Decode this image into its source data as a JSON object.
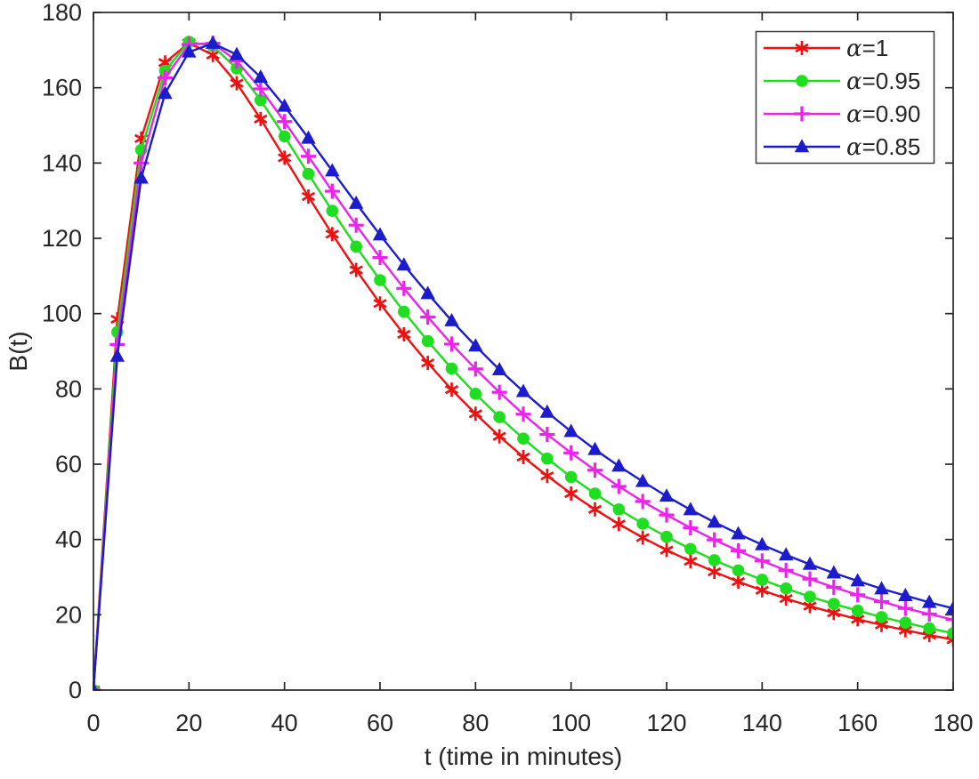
{
  "figure": {
    "type": "matlab-line-plot",
    "background": "#ffffff",
    "axis_color": "#262626",
    "text_color": "#262626",
    "legend_border_color": "#3a3a3a"
  },
  "chart_data": {
    "type": "line",
    "title": "",
    "xlabel": "t (time in minutes)",
    "ylabel": "B(t)",
    "xlim": [
      0,
      180
    ],
    "ylim": [
      0,
      180
    ],
    "xticks": [
      0,
      20,
      40,
      60,
      80,
      100,
      120,
      140,
      160,
      180
    ],
    "yticks": [
      0,
      20,
      40,
      60,
      80,
      100,
      120,
      140,
      160,
      180
    ],
    "grid": false,
    "legend_position": "top-right",
    "x": [
      0,
      5,
      10,
      15,
      20,
      25,
      30,
      35,
      40,
      45,
      50,
      55,
      60,
      65,
      70,
      75,
      80,
      85,
      90,
      95,
      100,
      105,
      110,
      115,
      120,
      125,
      130,
      135,
      140,
      145,
      150,
      155,
      160,
      165,
      170,
      175,
      180
    ],
    "series": [
      {
        "name": "α=1",
        "color": "#ee1111",
        "marker": "asterisk",
        "values": [
          0,
          98.5,
          146.5,
          166.7,
          171.9,
          168.7,
          161.2,
          151.7,
          141.4,
          131.1,
          121.1,
          111.6,
          102.7,
          94.5,
          86.9,
          79.8,
          73.4,
          67.4,
          61.9,
          56.9,
          52.2,
          48.0,
          44.1,
          40.5,
          37.2,
          34.2,
          31.4,
          28.8,
          26.5,
          24.3,
          22.3,
          20.5,
          18.8,
          17.3,
          15.9,
          14.6,
          13.4
        ]
      },
      {
        "name": "α=0.95",
        "color": "#1fdd1f",
        "marker": "circle",
        "values": [
          0,
          95.1,
          143.5,
          164.5,
          172.2,
          171.1,
          165.1,
          156.7,
          147.1,
          137.1,
          127.3,
          117.8,
          108.9,
          100.5,
          92.7,
          85.4,
          78.7,
          72.5,
          66.8,
          61.5,
          56.6,
          52.2,
          48.0,
          44.2,
          40.7,
          37.5,
          34.5,
          31.8,
          29.3,
          27.0,
          24.8,
          22.9,
          21.1,
          19.4,
          17.9,
          16.4,
          15.1
        ]
      },
      {
        "name": "α=0.90",
        "color": "#ee22ee",
        "marker": "plus",
        "values": [
          0,
          91.8,
          140.0,
          162.6,
          171.5,
          171.8,
          167.1,
          159.7,
          151.0,
          141.8,
          132.5,
          123.5,
          114.9,
          106.7,
          99.1,
          91.9,
          85.3,
          79.1,
          73.3,
          67.9,
          63.0,
          58.4,
          54.1,
          50.1,
          46.5,
          43.1,
          39.9,
          37.0,
          34.3,
          31.8,
          29.5,
          27.3,
          25.3,
          23.5,
          21.7,
          20.2,
          18.7
        ]
      },
      {
        "name": "α=0.85",
        "color": "#1c1ccd",
        "marker": "triangle",
        "values": [
          0,
          88.7,
          136.0,
          158.5,
          169.5,
          171.8,
          168.8,
          162.8,
          155.1,
          146.6,
          137.9,
          129.3,
          120.9,
          112.9,
          105.3,
          98.1,
          91.4,
          85.1,
          79.3,
          73.8,
          68.7,
          63.9,
          59.5,
          55.4,
          51.5,
          47.9,
          44.6,
          41.5,
          38.6,
          35.9,
          33.4,
          31.1,
          29.0,
          26.9,
          25.1,
          23.3,
          21.7
        ]
      }
    ]
  }
}
